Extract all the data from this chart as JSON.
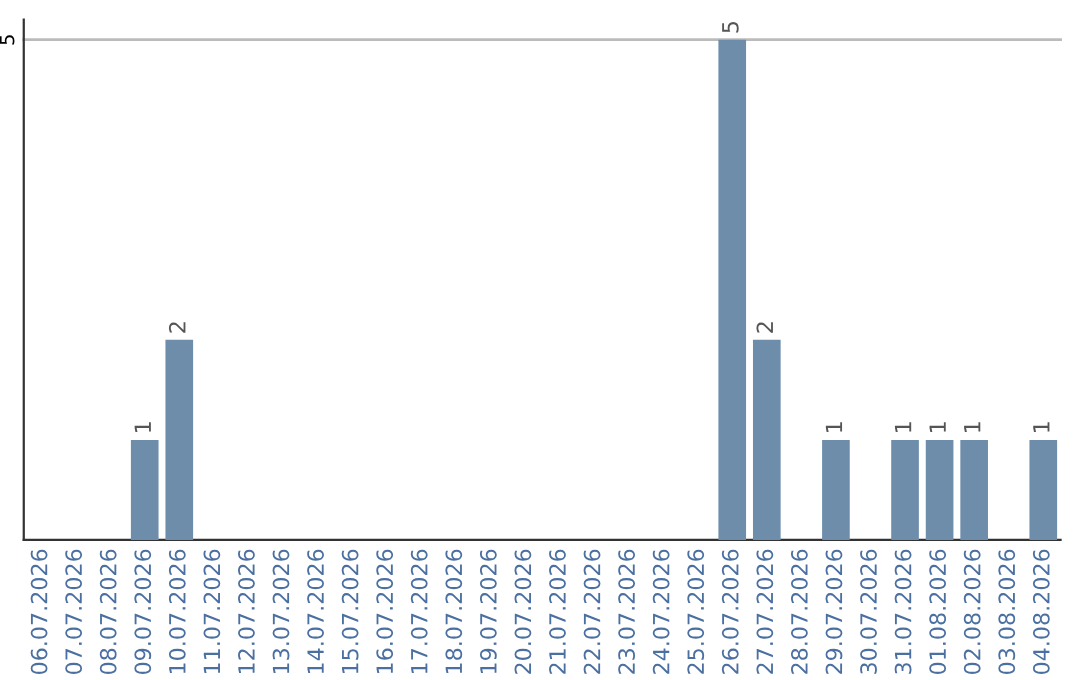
{
  "chart_data": {
    "type": "bar",
    "categories": [
      "06.07.2026",
      "07.07.2026",
      "08.07.2026",
      "09.07.2026",
      "10.07.2026",
      "11.07.2026",
      "12.07.2026",
      "13.07.2026",
      "14.07.2026",
      "15.07.2026",
      "16.07.2026",
      "17.07.2026",
      "18.07.2026",
      "19.07.2026",
      "20.07.2026",
      "21.07.2026",
      "22.07.2026",
      "23.07.2026",
      "24.07.2026",
      "25.07.2026",
      "26.07.2026",
      "27.07.2026",
      "28.07.2026",
      "29.07.2026",
      "30.07.2026",
      "31.07.2026",
      "01.08.2026",
      "02.08.2026",
      "03.08.2026",
      "04.08.2026"
    ],
    "values": [
      0,
      0,
      0,
      1,
      2,
      0,
      0,
      0,
      0,
      0,
      0,
      0,
      0,
      0,
      0,
      0,
      0,
      0,
      0,
      0,
      5,
      2,
      0,
      1,
      0,
      1,
      1,
      1,
      0,
      1
    ],
    "value_labels": [
      null,
      null,
      null,
      "1",
      "2",
      null,
      null,
      null,
      null,
      null,
      null,
      null,
      null,
      null,
      null,
      null,
      null,
      null,
      null,
      null,
      "5",
      "2",
      null,
      "1",
      null,
      "1",
      "1",
      "1",
      null,
      "1"
    ],
    "color": "#6d8dab",
    "ylim": [
      0,
      5.2
    ],
    "yticks": [
      5
    ],
    "grid": "y"
  }
}
